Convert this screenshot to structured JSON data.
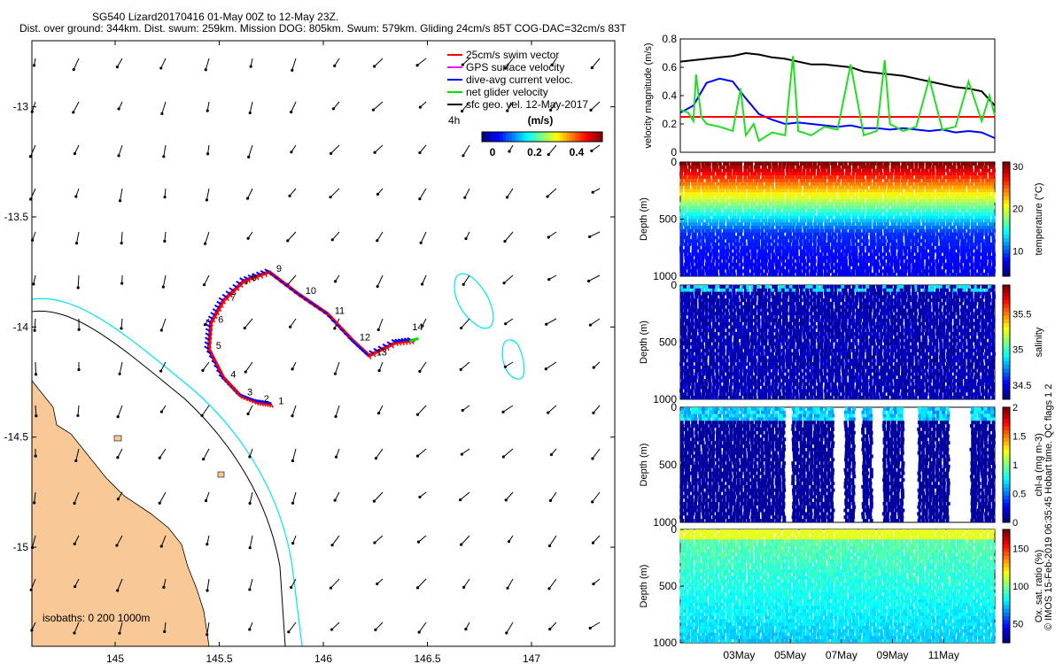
{
  "header": {
    "line1": "SG540 Lizard20170416 01-May 00Z to 12-May 23Z.",
    "line2": "Dist. over ground: 344km. Dist. swum: 259km. Mission DOG: 805km. Swum: 579km. Gliding 24cm/s 85T COG-DAC=32cm/s 83T"
  },
  "map": {
    "xticks": [
      145,
      145.5,
      146,
      146.5,
      147
    ],
    "xlim": [
      144.6,
      147.4
    ],
    "yticks": [
      -13,
      -13.5,
      -14,
      -14.5,
      -15
    ],
    "ylim": [
      -15.45,
      -12.7
    ],
    "legend": [
      {
        "label": "25cm/s swim vector",
        "color": "#ff0000"
      },
      {
        "label": "GPS surface velocity",
        "color": "#ff00ff"
      },
      {
        "label": "dive-avg current veloc.",
        "color": "#0000ff"
      },
      {
        "label": "net glider velocity",
        "color": "#00dd00"
      },
      {
        "label": "sfc geo. vel. 12-May-2017",
        "color": "#000000"
      }
    ],
    "colorbar": {
      "title": "(m/s)",
      "ticks": [
        0,
        0.2,
        0.4
      ],
      "offset_label": "4h"
    },
    "isobaths_label": "isobaths: 0   200  1000m",
    "day_labels": [
      "1",
      "2",
      "3",
      "4",
      "5",
      "6",
      "7",
      "8",
      "9",
      "10",
      "11",
      "12",
      "13",
      "14"
    ],
    "track": [
      [
        145.75,
        -14.35
      ],
      [
        145.68,
        -14.34
      ],
      [
        145.6,
        -14.31
      ],
      [
        145.52,
        -14.23
      ],
      [
        145.45,
        -14.1
      ],
      [
        145.46,
        -13.98
      ],
      [
        145.52,
        -13.88
      ],
      [
        145.62,
        -13.79
      ],
      [
        145.74,
        -13.75
      ],
      [
        145.88,
        -13.85
      ],
      [
        146.02,
        -13.94
      ],
      [
        146.14,
        -14.06
      ],
      [
        146.22,
        -14.13
      ],
      [
        146.35,
        -14.07
      ],
      [
        146.44,
        -14.06
      ]
    ],
    "colors": {
      "land": "#f8c896",
      "isobath_200": "#00e5ee",
      "isobath_1000": "#000000",
      "track_red": "#ff0000",
      "track_blue": "#0000ff"
    }
  },
  "chart_data": [
    {
      "type": "line",
      "ylabel": "velocity magnitude (m/s)",
      "ylim": [
        0,
        0.8
      ],
      "yticks": [
        0,
        0.2,
        0.4,
        0.6,
        0.8
      ],
      "xlabel": "",
      "series": [
        {
          "color": "#000000",
          "x": [
            0,
            0.5,
            1,
            1.5,
            2,
            2.5,
            3,
            3.5,
            4,
            4.5,
            5,
            5.5,
            6,
            6.5,
            7,
            7.5,
            8,
            8.5,
            9,
            9.5,
            10,
            10.5,
            11,
            11.5,
            12
          ],
          "values": [
            0.64,
            0.65,
            0.66,
            0.67,
            0.68,
            0.7,
            0.69,
            0.67,
            0.66,
            0.64,
            0.62,
            0.62,
            0.61,
            0.6,
            0.57,
            0.56,
            0.55,
            0.54,
            0.52,
            0.5,
            0.48,
            0.46,
            0.45,
            0.43,
            0.33
          ]
        },
        {
          "color": "#0000ff",
          "x": [
            0,
            0.5,
            1,
            1.5,
            2,
            2.5,
            3,
            3.5,
            4,
            4.5,
            5,
            5.5,
            6,
            6.5,
            7,
            7.5,
            8,
            8.5,
            9,
            9.5,
            10,
            10.5,
            11,
            11.5,
            12
          ],
          "values": [
            0.28,
            0.33,
            0.49,
            0.52,
            0.5,
            0.38,
            0.27,
            0.23,
            0.2,
            0.21,
            0.2,
            0.19,
            0.18,
            0.19,
            0.17,
            0.17,
            0.16,
            0.17,
            0.16,
            0.15,
            0.16,
            0.14,
            0.15,
            0.14,
            0.1
          ]
        },
        {
          "color": "#ff0000",
          "x": [
            0,
            12
          ],
          "values": [
            0.25,
            0.25
          ]
        },
        {
          "color": "#22dd22",
          "x": [
            0,
            0.3,
            0.5,
            0.6,
            0.8,
            1,
            1.5,
            2,
            2.3,
            2.5,
            2.8,
            3,
            3.5,
            4,
            4.3,
            4.5,
            5,
            5.5,
            6,
            6.5,
            7,
            7.5,
            7.8,
            8,
            8.5,
            9,
            9.5,
            10,
            10.5,
            11,
            11.5,
            11.8,
            12
          ],
          "values": [
            0.3,
            0.28,
            0.22,
            0.55,
            0.25,
            0.2,
            0.18,
            0.15,
            0.45,
            0.12,
            0.2,
            0.08,
            0.14,
            0.12,
            0.68,
            0.15,
            0.12,
            0.18,
            0.16,
            0.62,
            0.12,
            0.15,
            0.65,
            0.2,
            0.15,
            0.18,
            0.52,
            0.16,
            0.18,
            0.5,
            0.22,
            0.4,
            0.26
          ]
        }
      ]
    },
    {
      "type": "heatmap",
      "ylabel": "Depth (m)",
      "ylim": [
        1000,
        0
      ],
      "yticks": [
        0,
        500,
        1000
      ],
      "colorbar_label": "temperature (°C)",
      "colorbar_ticks": [
        10,
        20,
        30
      ],
      "clim": [
        4,
        31
      ]
    },
    {
      "type": "heatmap",
      "ylabel": "Depth (m)",
      "ylim": [
        1000,
        0
      ],
      "yticks": [
        0,
        500,
        1000
      ],
      "colorbar_label": "salinity",
      "colorbar_ticks": [
        34.5,
        35,
        35.5
      ],
      "clim": [
        34.3,
        35.9
      ]
    },
    {
      "type": "heatmap",
      "ylabel": "Depth (m)",
      "ylim": [
        1000,
        0
      ],
      "yticks": [
        0,
        500,
        1000
      ],
      "colorbar_label": "chl-a (mg m-3)",
      "colorbar_ticks": [
        0,
        0.5,
        1,
        1.5,
        2
      ],
      "clim": [
        0,
        2
      ]
    },
    {
      "type": "heatmap",
      "ylabel": "Depth (m)",
      "ylim": [
        1000,
        0
      ],
      "yticks": [
        0,
        500,
        1000
      ],
      "colorbar_label": "Ox. sat. ratio (%)",
      "colorbar_ticks": [
        50,
        100,
        150
      ],
      "clim": [
        25,
        175
      ]
    }
  ],
  "time_axis": {
    "labels": [
      "03May",
      "05May",
      "07May",
      "09May",
      "11May"
    ],
    "days": [
      2,
      4,
      6,
      8,
      10
    ]
  },
  "side_label": "© IMOS 15-Feb-2019 06:35:45 Hobart time. QC flags 1  2"
}
